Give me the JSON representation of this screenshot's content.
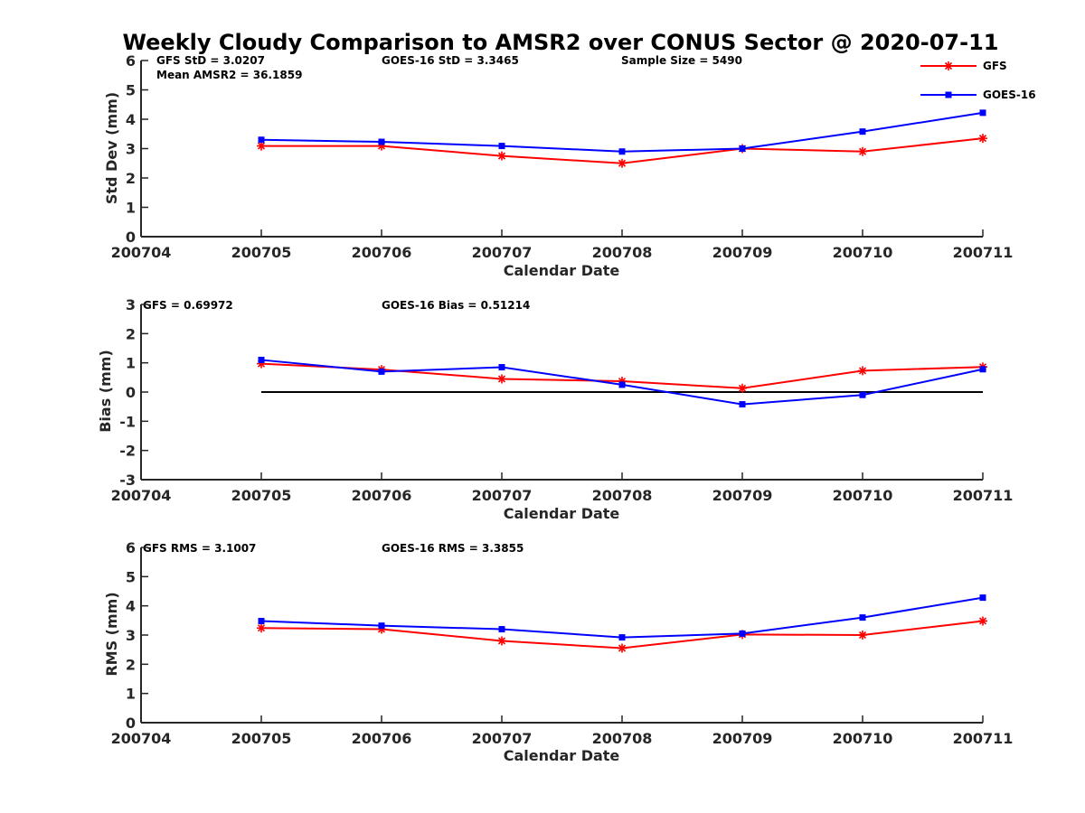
{
  "title": "Weekly Cloudy Comparison to AMSR2 over CONUS Sector @ 2020-07-11",
  "legend": [
    {
      "label": "GFS",
      "color": "#ff0000",
      "marker": "star"
    },
    {
      "label": "GOES-16",
      "color": "#0000ff",
      "marker": "square"
    }
  ],
  "chart_data": [
    {
      "type": "line",
      "xlabel": "Calendar Date",
      "ylabel": "Std Dev (mm)",
      "categories": [
        "200704",
        "200705",
        "200706",
        "200707",
        "200708",
        "200709",
        "200710",
        "200711"
      ],
      "ylim": [
        0,
        6
      ],
      "yticks": [
        "0",
        "1",
        "2",
        "3",
        "4",
        "5",
        "6"
      ],
      "annotations": [
        {
          "text": "GFS StD = 3.0207"
        },
        {
          "text": "Mean AMSR2 = 36.1859"
        },
        {
          "text": "GOES-16 StD = 3.3465"
        },
        {
          "text": "Sample Size = 5490"
        }
      ],
      "series": [
        {
          "name": "GFS",
          "color": "#ff0000",
          "marker": "star",
          "x": [
            "200705",
            "200706",
            "200707",
            "200708",
            "200709",
            "200710",
            "200711"
          ],
          "values": [
            3.09,
            3.09,
            2.75,
            2.5,
            3.0,
            2.9,
            3.35
          ]
        },
        {
          "name": "GOES-16",
          "color": "#0000ff",
          "marker": "square",
          "x": [
            "200705",
            "200706",
            "200707",
            "200708",
            "200709",
            "200710",
            "200711"
          ],
          "values": [
            3.3,
            3.23,
            3.09,
            2.9,
            3.0,
            3.58,
            4.22
          ]
        }
      ]
    },
    {
      "type": "line",
      "xlabel": "Calendar Date",
      "ylabel": "Bias (mm)",
      "categories": [
        "200704",
        "200705",
        "200706",
        "200707",
        "200708",
        "200709",
        "200710",
        "200711"
      ],
      "ylim": [
        -3,
        3
      ],
      "yticks": [
        "-3",
        "-2",
        "-1",
        "0",
        "1",
        "2",
        "3"
      ],
      "zero_line": {
        "from": "200705",
        "to": "200711",
        "value": 0,
        "color": "#000000"
      },
      "annotations": [
        {
          "text": "GFS = 0.69972"
        },
        {
          "text": "GOES-16 Bias  = 0.51214"
        }
      ],
      "series": [
        {
          "name": "GFS",
          "color": "#ff0000",
          "marker": "star",
          "x": [
            "200705",
            "200706",
            "200707",
            "200708",
            "200709",
            "200710",
            "200711"
          ],
          "values": [
            0.97,
            0.77,
            0.45,
            0.37,
            0.13,
            0.73,
            0.86
          ]
        },
        {
          "name": "GOES-16",
          "color": "#0000ff",
          "marker": "square",
          "x": [
            "200705",
            "200706",
            "200707",
            "200708",
            "200709",
            "200710",
            "200711"
          ],
          "values": [
            1.1,
            0.7,
            0.85,
            0.25,
            -0.42,
            -0.1,
            0.78
          ]
        }
      ]
    },
    {
      "type": "line",
      "xlabel": "Calendar Date",
      "ylabel": "RMS (mm)",
      "categories": [
        "200704",
        "200705",
        "200706",
        "200707",
        "200708",
        "200709",
        "200710",
        "200711"
      ],
      "ylim": [
        0,
        6
      ],
      "yticks": [
        "0",
        "1",
        "2",
        "3",
        "4",
        "5",
        "6"
      ],
      "annotations": [
        {
          "text": "GFS RMS = 3.1007"
        },
        {
          "text": "GOES-16 RMS = 3.3855"
        }
      ],
      "series": [
        {
          "name": "GFS",
          "color": "#ff0000",
          "marker": "star",
          "x": [
            "200705",
            "200706",
            "200707",
            "200708",
            "200709",
            "200710",
            "200711"
          ],
          "values": [
            3.24,
            3.2,
            2.8,
            2.55,
            3.02,
            3.0,
            3.48
          ]
        },
        {
          "name": "GOES-16",
          "color": "#0000ff",
          "marker": "square",
          "x": [
            "200705",
            "200706",
            "200707",
            "200708",
            "200709",
            "200710",
            "200711"
          ],
          "values": [
            3.48,
            3.32,
            3.2,
            2.92,
            3.05,
            3.6,
            4.28
          ]
        }
      ]
    }
  ]
}
